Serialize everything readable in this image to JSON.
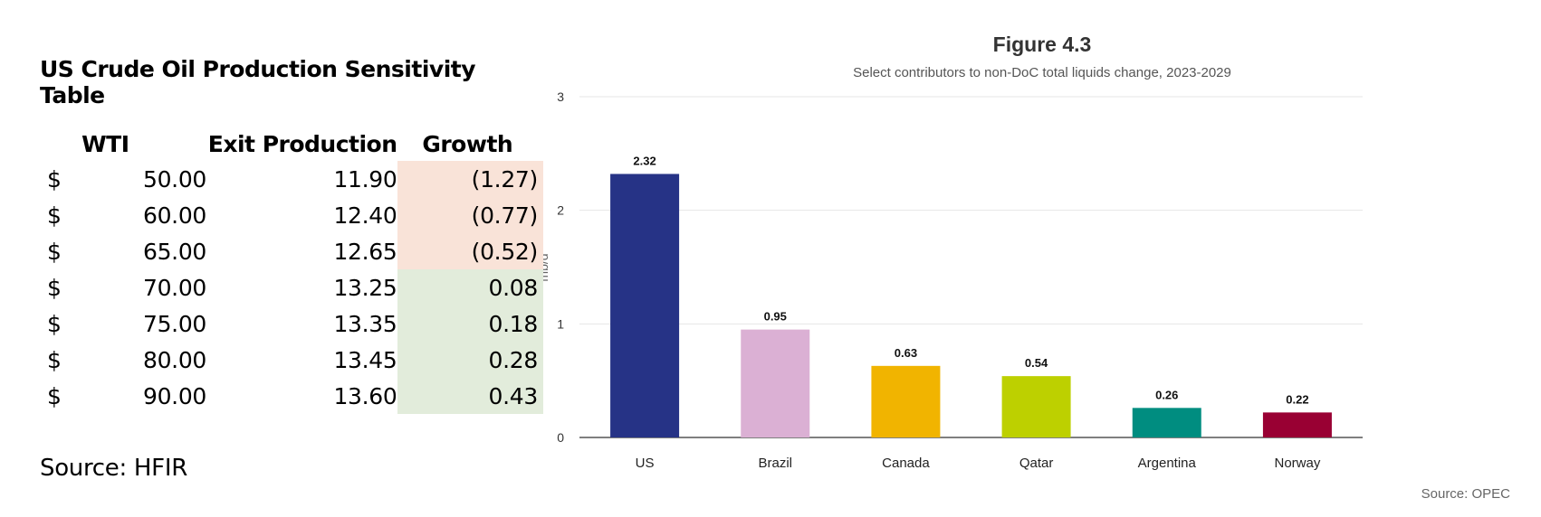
{
  "sensitivity_table": {
    "title": "US Crude Oil Production Sensitivity Table",
    "headers": {
      "wti": "WTI",
      "exit": "Exit Production",
      "growth": "Growth"
    },
    "rows": [
      {
        "currency": "$",
        "wti": "50.00",
        "exit": "11.90",
        "growth": "(1.27)"
      },
      {
        "currency": "$",
        "wti": "60.00",
        "exit": "12.40",
        "growth": "(0.77)"
      },
      {
        "currency": "$",
        "wti": "65.00",
        "exit": "12.65",
        "growth": "(0.52)"
      },
      {
        "currency": "$",
        "wti": "70.00",
        "exit": "13.25",
        "growth": "0.08"
      },
      {
        "currency": "$",
        "wti": "75.00",
        "exit": "13.35",
        "growth": "0.18"
      },
      {
        "currency": "$",
        "wti": "80.00",
        "exit": "13.45",
        "growth": "0.28"
      },
      {
        "currency": "$",
        "wti": "90.00",
        "exit": "13.60",
        "growth": "0.43"
      }
    ],
    "colors": {
      "negative": "#f9e3d8",
      "positive": "#e2ecdb"
    },
    "source": "Source: HFIR"
  },
  "chart_data": {
    "type": "bar",
    "title": "Figure 4.3",
    "subtitle": "Select contributors to non-DoC total liquids change, 2023-2029",
    "xlabel": "",
    "ylabel": "mb/d",
    "ylim": [
      0,
      3
    ],
    "yticks": [
      0,
      1,
      2,
      3
    ],
    "grid": true,
    "categories": [
      "US",
      "Brazil",
      "Canada",
      "Qatar",
      "Argentina",
      "Norway"
    ],
    "values": [
      2.32,
      0.95,
      0.63,
      0.54,
      0.26,
      0.22
    ],
    "data_labels": [
      "2.32",
      "0.95",
      "0.63",
      "0.54",
      "0.26",
      "0.22"
    ],
    "colors": [
      "#263386",
      "#dbb0d4",
      "#f1b400",
      "#bdd000",
      "#008d80",
      "#990033"
    ],
    "source": "Source: OPEC"
  }
}
